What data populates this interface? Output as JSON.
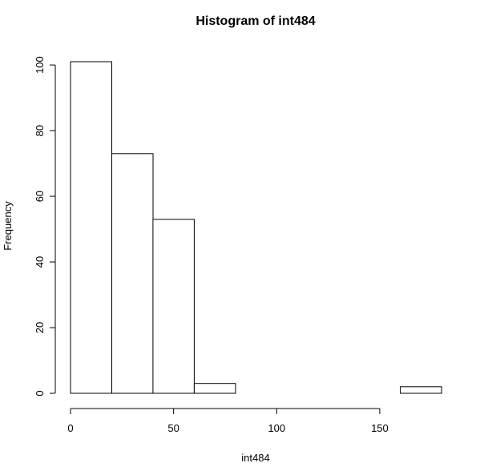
{
  "chart_data": {
    "type": "bar",
    "title": "Histogram of int484",
    "xlabel": "int484",
    "ylabel": "Frequency",
    "bins": [
      [
        0,
        20
      ],
      [
        20,
        40
      ],
      [
        40,
        60
      ],
      [
        60,
        80
      ],
      [
        80,
        100
      ],
      [
        100,
        120
      ],
      [
        120,
        140
      ],
      [
        140,
        160
      ],
      [
        160,
        180
      ]
    ],
    "values": [
      101,
      73,
      53,
      3,
      0,
      0,
      0,
      0,
      2
    ],
    "xlim": [
      0,
      180
    ],
    "ylim": [
      0,
      100
    ],
    "xticks": [
      0,
      50,
      100,
      150
    ],
    "yticks": [
      0,
      20,
      40,
      60,
      80,
      100
    ],
    "grid": false
  }
}
